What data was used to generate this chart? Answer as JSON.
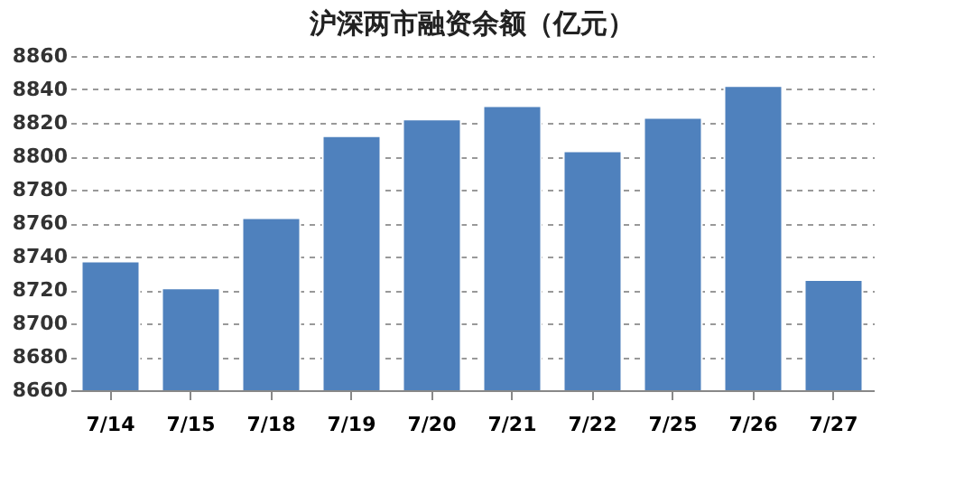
{
  "chart_data": {
    "type": "bar",
    "title": "沪深两市融资余额（亿元）",
    "categories": [
      "7/14",
      "7/15",
      "7/18",
      "7/19",
      "7/20",
      "7/21",
      "7/22",
      "7/25",
      "7/26",
      "7/27"
    ],
    "values": [
      8737,
      8721,
      8763,
      8812,
      8822,
      8830,
      8803,
      8823,
      8842,
      8726
    ],
    "color": "#4f81bd",
    "ylim": [
      8660,
      8860
    ],
    "yticks": [
      8660,
      8680,
      8700,
      8720,
      8740,
      8760,
      8780,
      8800,
      8820,
      8840,
      8860
    ],
    "grid": "y"
  }
}
